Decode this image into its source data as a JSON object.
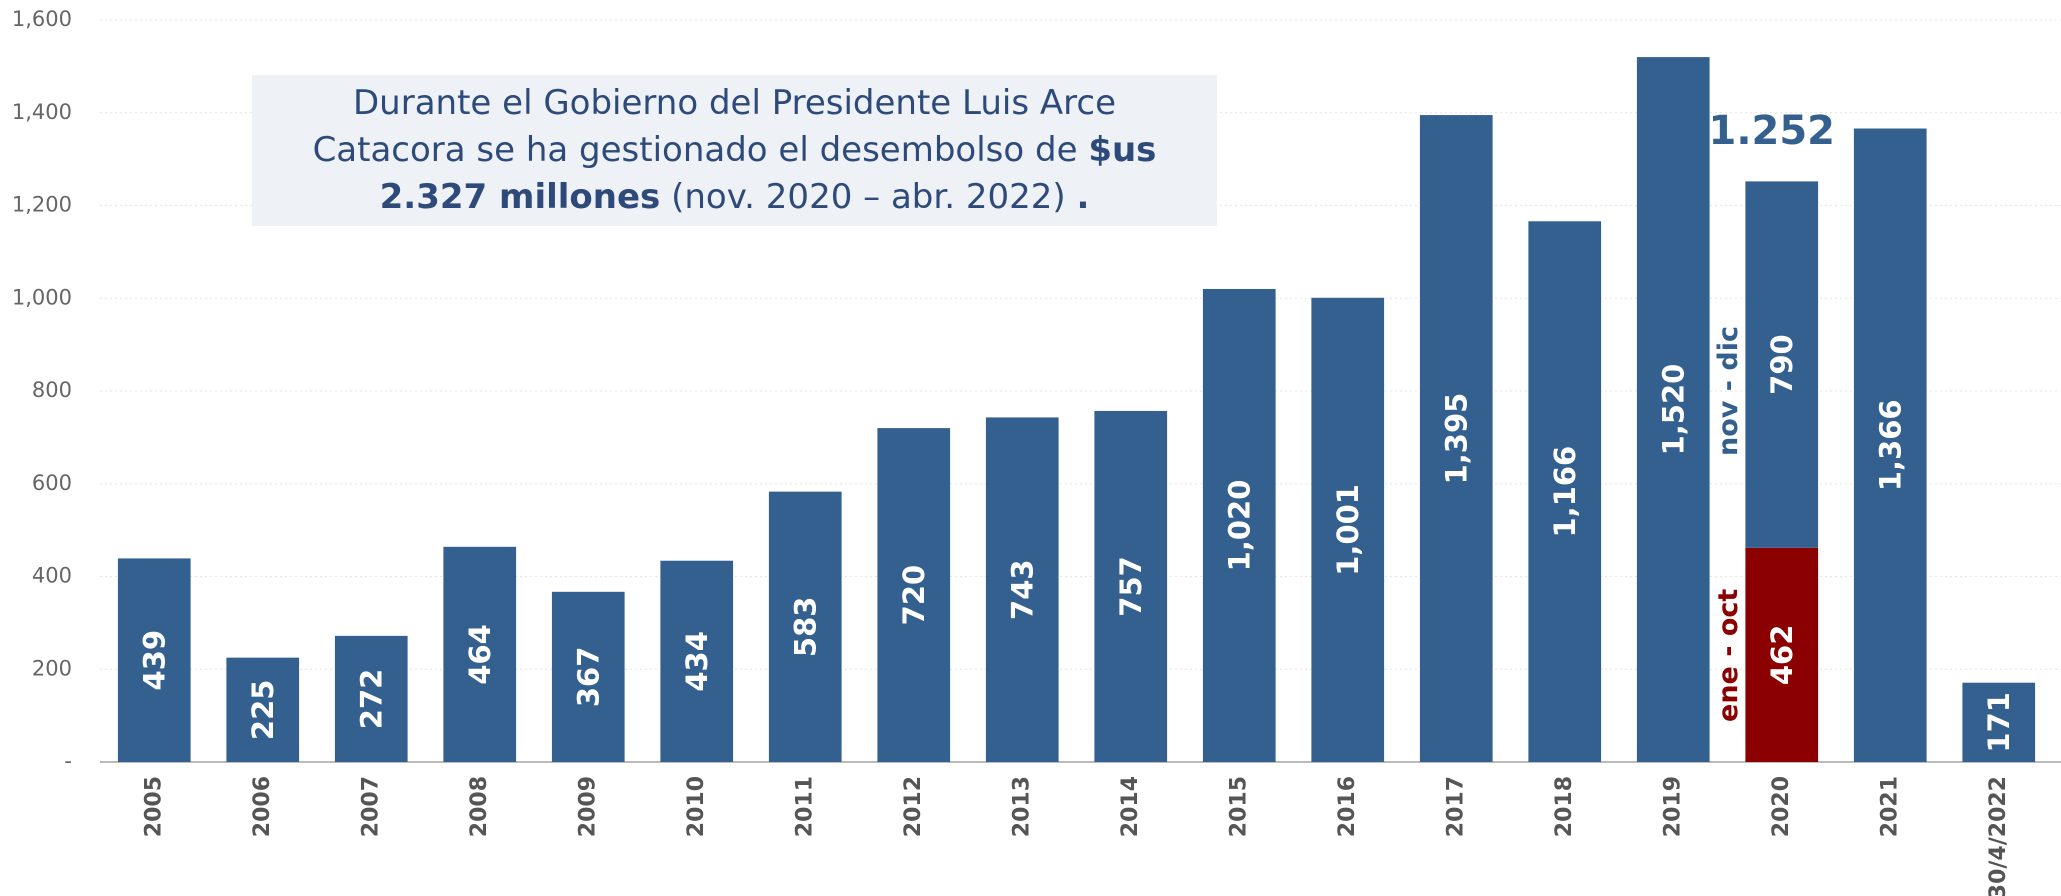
{
  "chart_data": {
    "type": "bar",
    "stacked": true,
    "categories": [
      "2005",
      "2006",
      "2007",
      "2008",
      "2009",
      "2010",
      "2011",
      "2012",
      "2013",
      "2014",
      "2015",
      "2016",
      "2017",
      "2018",
      "2019",
      "2020",
      "2021",
      "30/4/2022"
    ],
    "series": [
      {
        "color": "#8b0000",
        "values": [
          null,
          null,
          null,
          null,
          null,
          null,
          null,
          null,
          null,
          null,
          null,
          null,
          null,
          null,
          null,
          462,
          null,
          null
        ],
        "value_labels": [
          null,
          null,
          null,
          null,
          null,
          null,
          null,
          null,
          null,
          null,
          null,
          null,
          null,
          null,
          null,
          "462",
          null,
          null
        ]
      },
      {
        "color": "#34608f",
        "values": [
          439,
          225,
          272,
          464,
          367,
          434,
          583,
          720,
          743,
          757,
          1020,
          1001,
          1395,
          1166,
          1520,
          790,
          1366,
          171
        ],
        "value_labels": [
          "439",
          "225",
          "272",
          "464",
          "367",
          "434",
          "583",
          "720",
          "743",
          "757",
          "1,020",
          "1,001",
          "1,395",
          "1,166",
          "1,520",
          "790",
          "1,366",
          "171"
        ]
      }
    ],
    "ylim": [
      0,
      1600
    ],
    "yticks": [
      {
        "value": 0,
        "label": "-"
      },
      200,
      400,
      600,
      800,
      {
        "value": 1000,
        "label": "1,000"
      },
      {
        "value": 1200,
        "label": "1,200"
      },
      {
        "value": 1400,
        "label": "1,400"
      },
      {
        "value": 1600,
        "label": "1,600"
      }
    ],
    "grid": true,
    "annotations": [
      {
        "text": "ene - oct",
        "color": "#8b0000"
      },
      {
        "text": "nov - dic",
        "color": "#34608f"
      },
      {
        "text": "1.252",
        "color": "#34608f"
      }
    ],
    "text_box": {
      "parts": [
        {
          "text": "Durante el Gobierno del Presidente Luis Arce Catacora se ha gestionado el desembolso de ",
          "bold": false
        },
        {
          "text": "$us 2.327 millones",
          "bold": true
        },
        {
          "text": " (nov. 2020 – abr. 2022) ",
          "bold": false
        },
        {
          "text": ".",
          "bold": true
        }
      ]
    }
  }
}
